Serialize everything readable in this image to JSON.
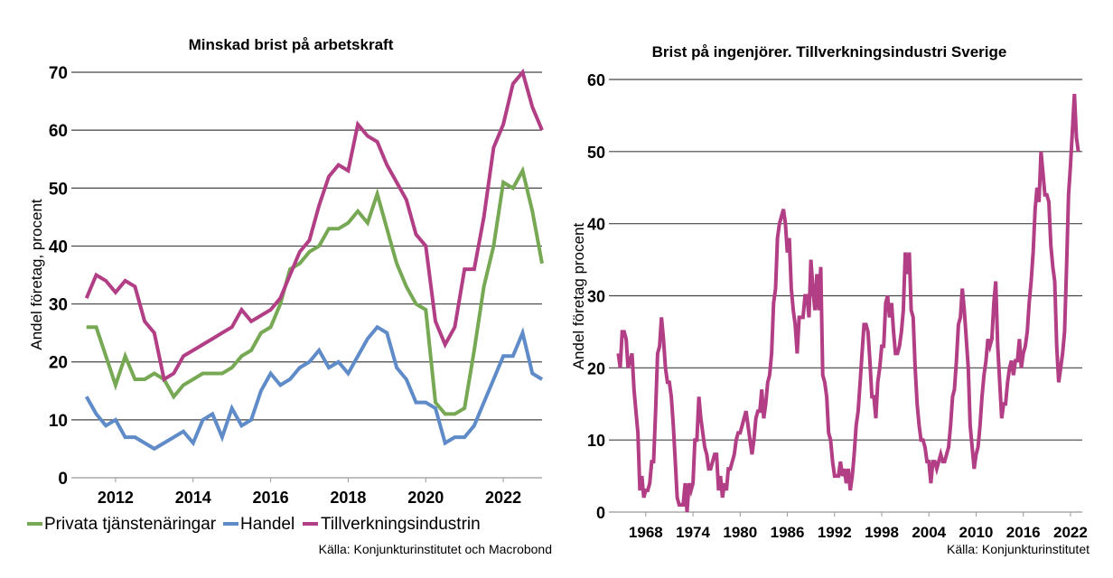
{
  "colors": {
    "privata": "#77a854",
    "handel": "#5f8bc9",
    "tillverkning": "#b23f86",
    "grid": "#444444"
  },
  "chart_data": [
    {
      "type": "line",
      "title": "Minskad brist på arbetskraft",
      "xlabel": "",
      "ylabel": "Andel företag, procent",
      "ylim": [
        0,
        70
      ],
      "xlim": [
        2011,
        2023
      ],
      "yticks": [
        "0",
        "10",
        "20",
        "30",
        "40",
        "50",
        "60",
        "70"
      ],
      "xticks": [
        "2012",
        "2014",
        "2016",
        "2018",
        "2020",
        "2022"
      ],
      "grid": true,
      "legend": "bottom",
      "source": "Källa: Konjunkturinstitutet och Macrobond",
      "x": [
        2011.25,
        2011.5,
        2011.75,
        2012.0,
        2012.25,
        2012.5,
        2012.75,
        2013.0,
        2013.25,
        2013.5,
        2013.75,
        2014.0,
        2014.25,
        2014.5,
        2014.75,
        2015.0,
        2015.25,
        2015.5,
        2015.75,
        2016.0,
        2016.25,
        2016.5,
        2016.75,
        2017.0,
        2017.25,
        2017.5,
        2017.75,
        2018.0,
        2018.25,
        2018.5,
        2018.75,
        2019.0,
        2019.25,
        2019.5,
        2019.75,
        2020.0,
        2020.25,
        2020.5,
        2020.75,
        2021.0,
        2021.25,
        2021.5,
        2021.75,
        2022.0,
        2022.25,
        2022.5,
        2022.75,
        2023.0
      ],
      "series": [
        {
          "name": "Privata tjänstenäringar",
          "color_key": "privata",
          "values": [
            26,
            26,
            21,
            16,
            21,
            17,
            17,
            18,
            17,
            14,
            16,
            17,
            18,
            18,
            18,
            19,
            21,
            22,
            25,
            26,
            30,
            36,
            37,
            39,
            40,
            43,
            43,
            44,
            46,
            44,
            49,
            43,
            37,
            33,
            30,
            29,
            13,
            11,
            11,
            12,
            22,
            33,
            40,
            51,
            50,
            53,
            46,
            37
          ]
        },
        {
          "name": "Handel",
          "color_key": "handel",
          "values": [
            14,
            11,
            9,
            10,
            7,
            7,
            6,
            5,
            6,
            7,
            8,
            6,
            10,
            11,
            7,
            12,
            9,
            10,
            15,
            18,
            16,
            17,
            19,
            20,
            22,
            19,
            20,
            18,
            21,
            24,
            26,
            25,
            19,
            17,
            13,
            13,
            12,
            6,
            7,
            7,
            9,
            13,
            17,
            21,
            21,
            25,
            18,
            17
          ]
        },
        {
          "name": "Tillverkningsindustrin",
          "color_key": "tillverkning",
          "values": [
            31,
            35,
            34,
            32,
            34,
            33,
            27,
            25,
            17,
            18,
            21,
            22,
            23,
            24,
            25,
            26,
            29,
            27,
            28,
            29,
            31,
            35,
            39,
            41,
            47,
            52,
            54,
            53,
            61,
            59,
            58,
            54,
            51,
            48,
            42,
            40,
            27,
            23,
            26,
            36,
            36,
            45,
            57,
            61,
            68,
            70,
            64,
            60
          ]
        }
      ]
    },
    {
      "type": "line",
      "title": "Brist på ingenjörer. Tillverkningsindustri Sverige",
      "xlabel": "",
      "ylabel": "Andel företag procent",
      "ylim": [
        0,
        60
      ],
      "xlim": [
        1964,
        2023.5
      ],
      "yticks": [
        "0",
        "10",
        "20",
        "30",
        "40",
        "50",
        "60"
      ],
      "xticks": [
        "1968",
        "1974",
        "1980",
        "1986",
        "1992",
        "1998",
        "2004",
        "2010",
        "2016",
        "2022"
      ],
      "grid": true,
      "legend": "none",
      "source": "Källa: Konjunkturinstitutet",
      "series": [
        {
          "name": "Tillverkningsindustri",
          "color_key": "tillverkning",
          "x_start": 1964.5,
          "x_step": 0.25,
          "values": [
            22,
            20,
            25,
            25,
            24,
            20,
            21,
            22,
            17,
            14,
            11,
            3,
            5,
            2,
            3,
            3,
            4,
            7,
            7,
            14,
            22,
            23,
            27,
            24,
            20,
            18,
            18,
            16,
            12,
            7,
            2,
            1,
            1,
            1,
            4,
            0,
            4,
            3,
            4,
            10,
            10,
            16,
            13,
            11,
            9,
            8,
            6,
            6,
            7,
            8,
            8,
            3,
            5,
            2,
            4,
            3,
            6,
            6,
            7,
            8,
            10,
            11,
            11,
            12,
            13,
            14,
            12,
            10,
            8,
            10,
            13,
            14,
            14,
            17,
            13,
            15,
            18,
            19,
            22,
            29,
            31,
            38,
            40,
            41,
            42,
            40,
            36,
            38,
            31,
            28,
            26,
            22,
            27,
            27,
            27,
            30,
            30,
            27,
            35,
            31,
            28,
            33,
            28,
            34,
            19,
            18,
            16,
            11,
            10,
            7,
            5,
            5,
            5,
            7,
            5,
            6,
            4,
            6,
            3,
            5,
            8,
            12,
            14,
            18,
            22,
            26,
            26,
            25,
            21,
            16,
            16,
            13,
            18,
            20,
            23,
            23,
            29,
            30,
            27,
            29,
            25,
            22,
            22,
            23,
            25,
            28,
            36,
            33,
            36,
            28,
            27,
            20,
            15,
            12,
            10,
            10,
            9,
            7,
            7,
            4,
            7,
            7,
            6,
            7,
            8,
            7,
            7,
            8,
            9,
            12,
            16,
            17,
            21,
            26,
            27,
            31,
            28,
            24,
            20,
            12,
            9,
            6,
            8,
            9,
            12,
            16,
            19,
            21,
            24,
            23,
            24,
            29,
            32,
            23,
            18,
            13,
            15,
            15,
            18,
            20,
            21,
            19,
            21,
            21,
            24,
            20,
            22,
            23,
            25,
            29,
            32,
            36,
            42,
            45,
            43,
            50,
            47,
            44,
            44,
            43,
            37,
            34,
            32,
            23,
            18,
            20,
            22,
            25,
            34,
            44,
            48,
            53,
            58,
            52,
            50
          ]
        }
      ]
    }
  ]
}
